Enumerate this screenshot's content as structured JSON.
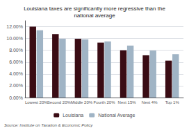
{
  "chart_data": {
    "type": "bar",
    "title": "Louisiana taxes are significantly more regressive than the\nnational average",
    "categories": [
      "Lowest 20%",
      "Second 20%",
      "Middle 20%",
      "Fourth 20%",
      "Next 15%",
      "Next 4%",
      "Top 1%"
    ],
    "series": [
      {
        "name": "Louisiana",
        "color": "#3a0c14",
        "values": [
          0.12,
          0.1075,
          0.0995,
          0.093,
          0.08,
          0.0715,
          0.0625
        ]
      },
      {
        "name": "National Average",
        "color": "#a0b4c5",
        "values": [
          0.114,
          0.0995,
          0.0985,
          0.095,
          0.088,
          0.0795,
          0.0735
        ]
      }
    ],
    "ylim": [
      0,
      0.13
    ],
    "yticks": [
      {
        "value": 0.0,
        "label": "0.00%"
      },
      {
        "value": 0.02,
        "label": "2.00%"
      },
      {
        "value": 0.04,
        "label": "4.00%"
      },
      {
        "value": 0.06,
        "label": "6.00%"
      },
      {
        "value": 0.08,
        "label": "8.00%"
      },
      {
        "value": 0.1,
        "label": "10.00%"
      },
      {
        "value": 0.12,
        "label": "12.00%"
      }
    ],
    "grid": true,
    "legend": "bottom",
    "source": "Source: Institute on Taxation & Economic Policy"
  }
}
